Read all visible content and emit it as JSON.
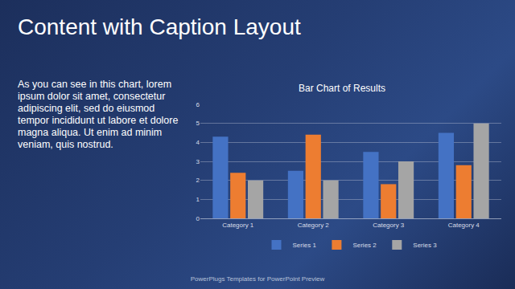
{
  "slide": {
    "title": "Content with Caption Layout",
    "caption": "As you can see in this chart, lorem ipsum dolor sit amet, consectetur adipiscing elit, sed do eiusmod tempor incididunt ut labore et dolore magna aliqua. Ut enim ad minim veniam, quis nostrud.",
    "footer": "PowerPlugs Templates for PowerPoint Preview"
  },
  "chart_data": {
    "type": "bar",
    "title": "Bar Chart of Results",
    "categories": [
      "Category 1",
      "Category 2",
      "Category 3",
      "Category 4"
    ],
    "series": [
      {
        "name": "Series 1",
        "color": "#4472c4",
        "values": [
          4.3,
          2.5,
          3.5,
          4.5
        ]
      },
      {
        "name": "Series 2",
        "color": "#ed7d31",
        "values": [
          2.4,
          4.4,
          1.8,
          2.8
        ]
      },
      {
        "name": "Series 3",
        "color": "#a5a5a5",
        "values": [
          2,
          2,
          3,
          5
        ]
      }
    ],
    "ylim": [
      0,
      6
    ],
    "yticks": [
      0,
      1,
      2,
      3,
      4,
      5,
      6
    ],
    "grid": true,
    "legend": "bottom"
  }
}
